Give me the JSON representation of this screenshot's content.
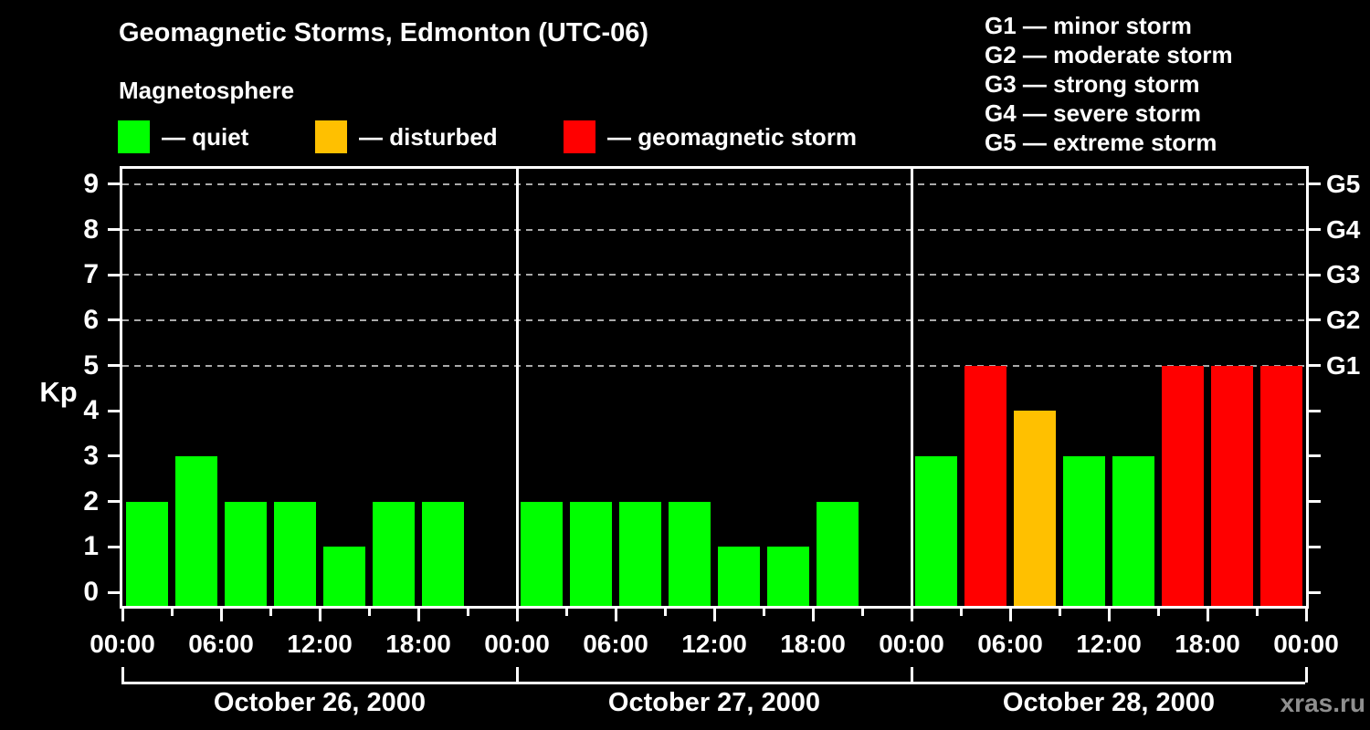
{
  "title": "Geomagnetic Storms, Edmonton (UTC-06)",
  "subtitle": "Magnetosphere",
  "legend": {
    "items": [
      {
        "label": "— quiet",
        "color": "#00ff00"
      },
      {
        "label": "— disturbed",
        "color": "#ffc000"
      },
      {
        "label": "— geomagnetic storm",
        "color": "#ff0000"
      }
    ]
  },
  "storm_scale_legend": [
    "G1 — minor storm",
    "G2 — moderate storm",
    "G3 — strong storm",
    "G4 — severe storm",
    "G5 — extreme storm"
  ],
  "watermark": "xras.ru",
  "chart_data": {
    "type": "bar",
    "title": "Geomagnetic Storms, Edmonton (UTC-06)",
    "subtitle": "Magnetosphere",
    "ylabel": "Kp",
    "ylim": [
      0,
      9
    ],
    "y_ticks": [
      "0",
      "1",
      "2",
      "3",
      "4",
      "5",
      "6",
      "7",
      "8",
      "9"
    ],
    "dashed_gridlines_at_kp": [
      5,
      6,
      7,
      8,
      9
    ],
    "right_axis": [
      {
        "kp": 5,
        "label": "G1"
      },
      {
        "kp": 6,
        "label": "G2"
      },
      {
        "kp": 7,
        "label": "G3"
      },
      {
        "kp": 8,
        "label": "G4"
      },
      {
        "kp": 9,
        "label": "G5"
      }
    ],
    "x_tick_labels": [
      "00:00",
      "06:00",
      "12:00",
      "18:00",
      "00:00",
      "06:00",
      "12:00",
      "18:00",
      "00:00",
      "06:00",
      "12:00",
      "18:00",
      "00:00"
    ],
    "slot_start_times": [
      "00:00",
      "03:00",
      "06:00",
      "09:00",
      "12:00",
      "15:00",
      "18:00",
      "21:00"
    ],
    "days": [
      {
        "date": "October 26, 2000",
        "kp_values": [
          2,
          3,
          2,
          2,
          1,
          2,
          2,
          null
        ]
      },
      {
        "date": "October 27, 2000",
        "kp_values": [
          2,
          2,
          2,
          2,
          1,
          1,
          2,
          null
        ]
      },
      {
        "date": "October 28, 2000",
        "kp_values": [
          3,
          5,
          4,
          3,
          3,
          5,
          5,
          5
        ]
      }
    ],
    "bar_colors": {
      "quiet": "#00ff00",
      "disturbed": "#ffc000",
      "storm": "#ff0000"
    },
    "color_mapping": "Kp<=3 quiet (green), Kp=4 disturbed (orange), Kp>=5 storm (red)",
    "legend_position": "top-left",
    "grid": "dashed horizontal lines at Kp 5-9 only, vertical white dividers between days"
  }
}
